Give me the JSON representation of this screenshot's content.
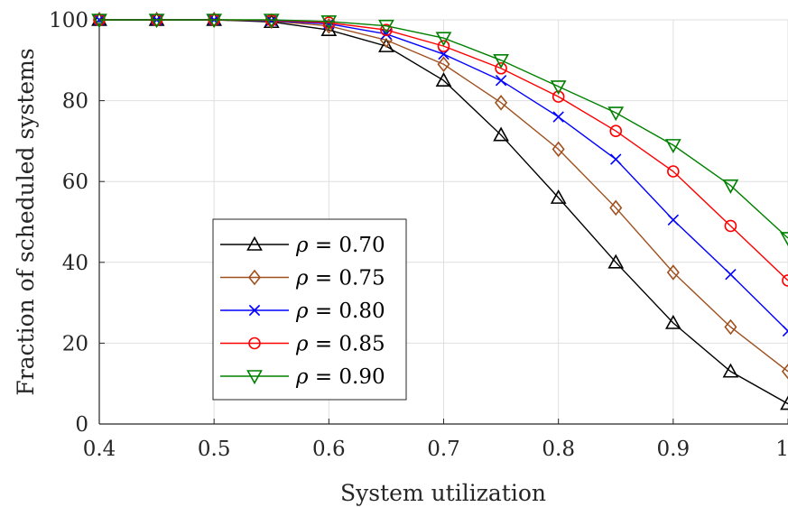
{
  "chart_data": {
    "type": "line",
    "title": "",
    "xlabel": "System utilization",
    "ylabel": "Fraction of scheduled systems",
    "xlim": [
      0.4,
      1.0
    ],
    "ylim": [
      0,
      100
    ],
    "xticks": [
      "0.4",
      "0.5",
      "0.6",
      "0.7",
      "0.8",
      "0.9",
      "1"
    ],
    "yticks": [
      "0",
      "20",
      "40",
      "60",
      "80",
      "100"
    ],
    "grid": true,
    "legend_position": "lower-left",
    "x": [
      0.4,
      0.45,
      0.5,
      0.55,
      0.6,
      0.65,
      0.7,
      0.75,
      0.8,
      0.85,
      0.9,
      0.95,
      1.0
    ],
    "series": [
      {
        "name": "ρ = 0.70",
        "legend_var": "ρ",
        "legend_value": " = 0.70",
        "color": "#000000",
        "marker": "triangle-up",
        "values": [
          100,
          100,
          100,
          99.5,
          97.5,
          93.5,
          85,
          71.5,
          56,
          40,
          25,
          13,
          5
        ]
      },
      {
        "name": "ρ = 0.75",
        "legend_var": "ρ",
        "legend_value": " = 0.75",
        "color": "#a0501e",
        "marker": "diamond",
        "values": [
          100,
          100,
          100,
          99.7,
          98.5,
          95,
          89,
          79.5,
          68,
          53.5,
          37.5,
          24,
          13
        ]
      },
      {
        "name": "ρ = 0.80",
        "legend_var": "ρ",
        "legend_value": " = 0.80",
        "color": "#0000ff",
        "marker": "x",
        "values": [
          100,
          100,
          100,
          99.8,
          99,
          96.5,
          91.5,
          85,
          76,
          65.5,
          50.5,
          37,
          23
        ]
      },
      {
        "name": "ρ = 0.85",
        "legend_var": "ρ",
        "legend_value": " = 0.85",
        "color": "#ff0000",
        "marker": "circle",
        "values": [
          100,
          100,
          100,
          99.9,
          99.3,
          97.5,
          93.5,
          88,
          81,
          72.5,
          62.5,
          49,
          35.5
        ]
      },
      {
        "name": "ρ = 0.90",
        "legend_var": "ρ",
        "legend_value": " = 0.90",
        "color": "#008000",
        "marker": "triangle-down",
        "values": [
          100,
          100,
          100,
          100,
          99.6,
          98.5,
          95.5,
          90,
          83.5,
          77,
          69,
          59,
          46
        ]
      }
    ]
  }
}
